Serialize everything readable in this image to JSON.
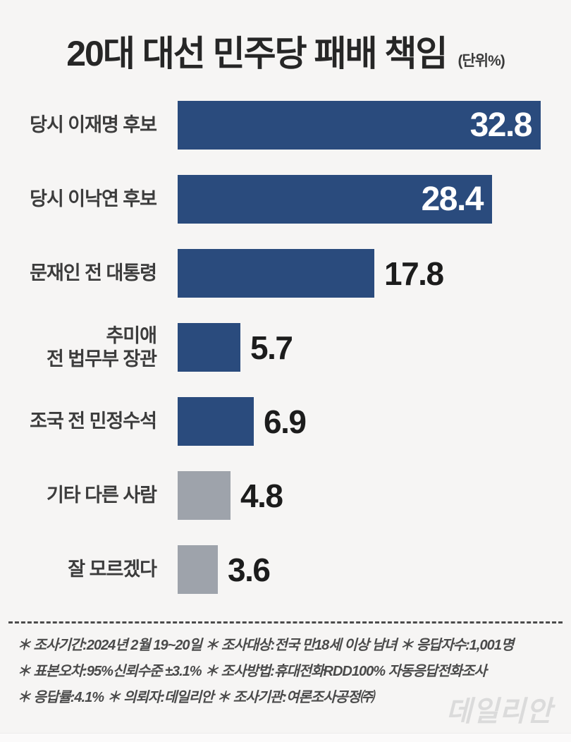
{
  "chart_data": {
    "type": "bar",
    "orientation": "horizontal",
    "title": "20대 대선 민주당 패배 책임",
    "unit": "(단위%)",
    "categories": [
      "당시 이재명 후보",
      "당시 이낙연 후보",
      "문재인 전 대통령",
      "추미애\n전 법무부 장관",
      "조국 전 민정수석",
      "기타 다른 사람",
      "잘 모르겠다"
    ],
    "values": [
      32.8,
      28.4,
      17.8,
      5.7,
      6.9,
      4.8,
      3.6
    ],
    "bar_colors": [
      "#2a4b7d",
      "#2a4b7d",
      "#2a4b7d",
      "#2a4b7d",
      "#2a4b7d",
      "#9ea3ab",
      "#9ea3ab"
    ],
    "value_label_position": [
      "inside",
      "inside",
      "outside",
      "outside",
      "outside",
      "outside",
      "outside"
    ],
    "xlim": [
      0,
      34
    ],
    "grid": false,
    "legend": false,
    "ylabel": "",
    "xlabel": ""
  },
  "footnotes": {
    "lines": [
      "＊ 조사기간:2024년 2월 19~20일  ＊ 조사대상:전국 만18세 이상 남녀  ＊ 응답자수:1,001명",
      "＊ 표본오차:95%신뢰수준 ±3.1%  ＊ 조사방법:휴대전화RDD100% 자동응답전화조사",
      "＊ 응답률:4.1%  ＊ 의뢰자:데일리안  ＊ 조사기관:여론조사공정㈜"
    ]
  },
  "watermark": "데일리안",
  "colors": {
    "background": "#f6f5f4",
    "bar_primary": "#2a4b7d",
    "bar_muted": "#9ea3ab",
    "value_inside": "#ffffff",
    "value_outside": "#1c1c1c",
    "label_text": "#3c3c3c",
    "footnote_text": "#4a4a4a",
    "watermark_text": "#dbdbdb"
  }
}
